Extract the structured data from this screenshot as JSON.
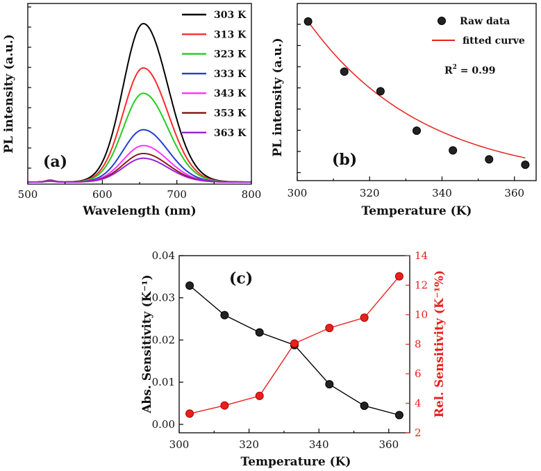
{
  "chart_data": [
    {
      "id": "a",
      "type": "line",
      "panel_label": "(a)",
      "xlabel": "Wavelength (nm)",
      "ylabel": "PL intensity (a.u.)",
      "xlim": [
        500,
        800
      ],
      "xticks": [
        "500",
        "600",
        "700",
        "800"
      ],
      "peak_nm": 655,
      "series": [
        {
          "name": "303 K",
          "color": "#000000",
          "peak": 1.0
        },
        {
          "name": "313 K",
          "color": "#ff2a2a",
          "peak": 0.72
        },
        {
          "name": "323 K",
          "color": "#22cc22",
          "peak": 0.56
        },
        {
          "name": "333 K",
          "color": "#1f3fd0",
          "peak": 0.33
        },
        {
          "name": "343 K",
          "color": "#ff33ff",
          "peak": 0.23
        },
        {
          "name": "353 K",
          "color": "#8b1a1a",
          "peak": 0.18
        },
        {
          "name": "363 K",
          "color": "#9a1fd6",
          "peak": 0.15
        }
      ]
    },
    {
      "id": "b",
      "type": "scatter",
      "panel_label": "(b)",
      "xlabel": "Temperature (K)",
      "ylabel": "PL intensity (a.u.)",
      "xlim": [
        300,
        366
      ],
      "xticks": [
        "300",
        "320",
        "340",
        "360"
      ],
      "x": [
        303,
        313,
        323,
        333,
        343,
        353,
        363
      ],
      "raw": [
        1.0,
        0.72,
        0.61,
        0.39,
        0.28,
        0.23,
        0.2
      ],
      "fit_color": "#e8201c",
      "legend": {
        "raw": "Raw data",
        "fit": "fitted curve"
      },
      "annotation_base": "R",
      "annotation_sup": "2",
      "annotation_rest": " = 0.99"
    },
    {
      "id": "c",
      "type": "line",
      "panel_label": "(c)",
      "xlabel": "Temperature (K)",
      "ylabel_left": "Abs. Sensitivity (K⁻¹)",
      "ylabel_right": "Rel. Sensitivity (K⁻¹%)",
      "xlim": [
        300,
        366
      ],
      "xticks": [
        "300",
        "320",
        "340",
        "360"
      ],
      "ylim_left": [
        -0.002,
        0.04
      ],
      "yticks_left": [
        "0.00",
        "0.01",
        "0.02",
        "0.03",
        "0.04"
      ],
      "ylim_right": [
        2,
        14
      ],
      "yticks_right": [
        "2",
        "4",
        "6",
        "8",
        "10",
        "12",
        "14"
      ],
      "x": [
        303,
        313,
        323,
        333,
        343,
        353,
        363
      ],
      "abs_values": [
        0.0329,
        0.0259,
        0.0218,
        0.0188,
        0.0095,
        0.0044,
        0.0022
      ],
      "rel_values": [
        3.3,
        3.85,
        4.5,
        8.05,
        9.1,
        9.8,
        12.6
      ],
      "abs_color": "#000000",
      "rel_color": "#e8201c"
    }
  ]
}
